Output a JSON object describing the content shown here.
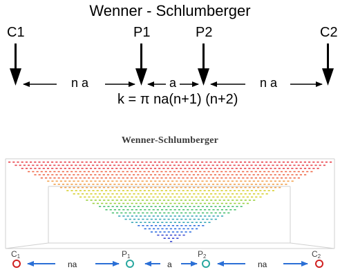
{
  "top": {
    "title": "Wenner - Schlumberger",
    "electrodes": {
      "c1": "C1",
      "p1": "P1",
      "p2": "P2",
      "c2": "C2"
    },
    "spacing": {
      "left": "n a",
      "middle": "a",
      "right": "n a"
    },
    "formula": "k = π na(n+1) (n+2)"
  },
  "bottom": {
    "title": "Wenner-Schlumberger",
    "electrodes": {
      "c1": {
        "letter": "C",
        "sub": "1"
      },
      "p1": {
        "letter": "P",
        "sub": "1"
      },
      "p2": {
        "letter": "P",
        "sub": "2"
      },
      "c2": {
        "letter": "C",
        "sub": "2"
      }
    },
    "spacing": {
      "left": "na",
      "middle": "a",
      "right": "na"
    },
    "colors": {
      "arrow": "#2a6fd6",
      "current_electrode": "#d02020",
      "potential_electrode": "#2aa8a0",
      "pseudosection": [
        "#e8404a",
        "#f06a4a",
        "#f2a04a",
        "#d8d030",
        "#9ad040",
        "#4ac070",
        "#3aa8b8",
        "#2f6fe0",
        "#3a4ad0"
      ]
    }
  }
}
